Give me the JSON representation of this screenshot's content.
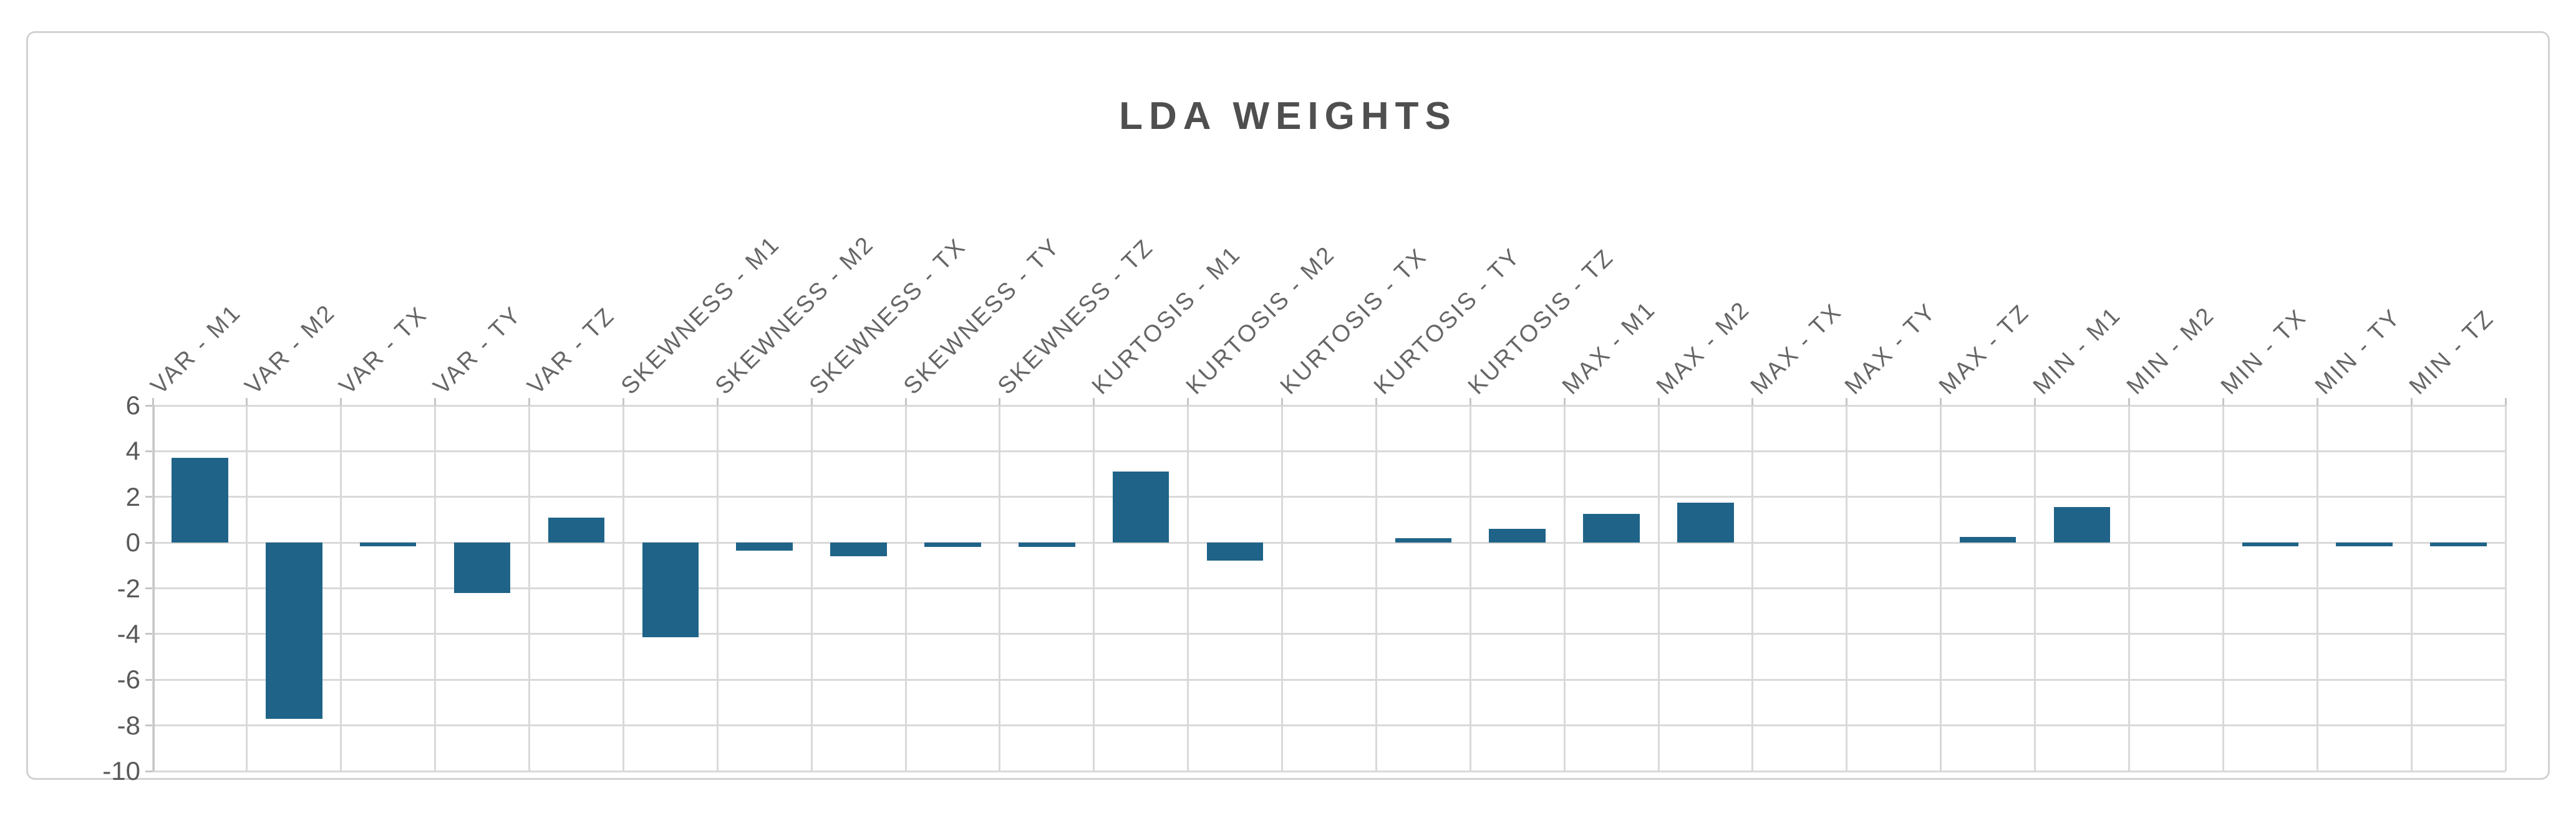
{
  "window": {
    "background_color": "#ffffff",
    "frame_border_color": "#d2d2d2"
  },
  "chart_data": {
    "type": "bar",
    "title": "LDA WEIGHTS",
    "title_color": "#4f4f4f",
    "xlabel": "",
    "ylabel": "",
    "categories": [
      "VAR - M1",
      "VAR - M2",
      "VAR - TX",
      "VAR - TY",
      "VAR - TZ",
      "SKEWNESS - M1",
      "SKEWNESS - M2",
      "SKEWNESS - TX",
      "SKEWNESS - TY",
      "SKEWNESS - TZ",
      "KURTOSIS - M1",
      "KURTOSIS - M2",
      "KURTOSIS - TX",
      "KURTOSIS - TY",
      "KURTOSIS - TZ",
      "MAX - M1",
      "MAX - M2",
      "MAX - TX",
      "MAX - TY",
      "MAX - TZ",
      "MIN - M1",
      "MIN - M2",
      "MIN - TX",
      "MIN - TY",
      "MIN - TZ"
    ],
    "values": [
      3.7,
      -7.7,
      -0.15,
      -2.2,
      1.1,
      -4.15,
      -0.35,
      -0.6,
      -0.2,
      -0.2,
      3.1,
      -0.8,
      0,
      0.2,
      0.6,
      1.25,
      1.75,
      0,
      0,
      0.25,
      1.55,
      0,
      -0.15,
      -0.15,
      -0.15
    ],
    "ylim": [
      -10,
      6
    ],
    "yticks": [
      6,
      4,
      2,
      0,
      -2,
      -4,
      -6,
      -8,
      -10
    ],
    "ytick_interval": 2,
    "grid": true,
    "gridline_color": "#d9d9d9",
    "bar_color": "#1f6388",
    "axis_label_color": "#595959",
    "category_label_rotation_deg": 45,
    "legend_position": "none",
    "series_name": "LDA weight"
  }
}
